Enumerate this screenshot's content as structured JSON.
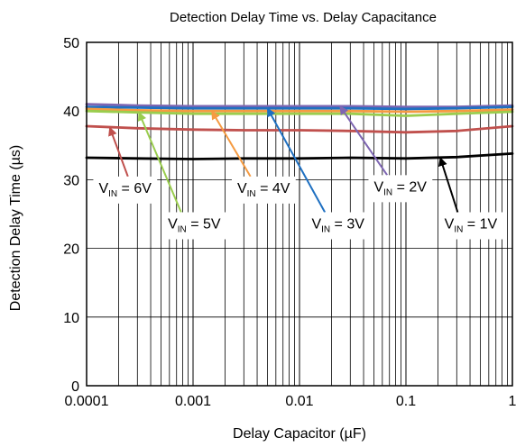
{
  "chart_data": {
    "type": "line",
    "title": "Detection Delay Time vs. Delay Capacitance",
    "xlabel": "Delay Capacitor (µF)",
    "ylabel": "Detection Delay Time (µs)",
    "x_scale": "log",
    "xlim": [
      0.0001,
      1
    ],
    "ylim": [
      0,
      50
    ],
    "x_ticks": [
      0.0001,
      0.001,
      0.01,
      0.1,
      1
    ],
    "x_tick_labels": [
      "0.0001",
      "0.001",
      "0.01",
      "0.1",
      "1"
    ],
    "y_ticks": [
      0,
      10,
      20,
      30,
      40,
      50
    ],
    "y_tick_labels": [
      "0",
      "10",
      "20",
      "30",
      "40",
      "50"
    ],
    "grid": true,
    "legend": "none",
    "x": [
      0.0001,
      0.0003,
      0.001,
      0.003,
      0.01,
      0.03,
      0.1,
      0.3,
      1
    ],
    "series": [
      {
        "name": "VIN = 1V",
        "color": "#000000",
        "values": [
          33.2,
          33.1,
          33.0,
          33.1,
          33.1,
          33.2,
          33.1,
          33.3,
          33.8
        ]
      },
      {
        "name": "VIN = 2V",
        "color": "#7e66b2",
        "values": [
          41.0,
          40.8,
          40.7,
          40.7,
          40.7,
          40.7,
          40.6,
          40.6,
          40.8
        ]
      },
      {
        "name": "VIN = 3V",
        "color": "#1f70c1",
        "values": [
          40.6,
          40.5,
          40.4,
          40.4,
          40.4,
          40.4,
          40.3,
          40.4,
          40.6
        ]
      },
      {
        "name": "VIN = 4V",
        "color": "#f59b42",
        "values": [
          40.3,
          40.1,
          40.0,
          40.0,
          40.0,
          40.0,
          39.9,
          40.0,
          40.2
        ]
      },
      {
        "name": "VIN = 5V",
        "color": "#9acd4e",
        "values": [
          40.0,
          39.8,
          39.6,
          39.6,
          39.6,
          39.6,
          39.3,
          39.6,
          39.9
        ]
      },
      {
        "name": "VIN = 6V",
        "color": "#c0504d",
        "values": [
          37.8,
          37.5,
          37.3,
          37.2,
          37.2,
          37.1,
          36.9,
          37.1,
          37.8
        ]
      }
    ],
    "annotations": [
      {
        "series": 5,
        "main": "V",
        "sub": "IN",
        "rest": " = 6V",
        "target_x": 0.000165,
        "target_y": 37.6,
        "label_x": 0.00013,
        "label_y": 28.1
      },
      {
        "series": 4,
        "main": "V",
        "sub": "IN",
        "rest": " = 5V",
        "target_x": 0.00031,
        "target_y": 39.8,
        "label_x": 0.00058,
        "label_y": 22.9
      },
      {
        "series": 3,
        "main": "V",
        "sub": "IN",
        "rest": " = 4V",
        "target_x": 0.0015,
        "target_y": 40.0,
        "label_x": 0.0026,
        "label_y": 28.1
      },
      {
        "series": 2,
        "main": "V",
        "sub": "IN",
        "rest": " = 3V",
        "target_x": 0.005,
        "target_y": 40.4,
        "label_x": 0.013,
        "label_y": 22.9
      },
      {
        "series": 1,
        "main": "V",
        "sub": "IN",
        "rest": " = 2V",
        "target_x": 0.024,
        "target_y": 40.7,
        "label_x": 0.05,
        "label_y": 28.3
      },
      {
        "series": 0,
        "main": "V",
        "sub": "IN",
        "rest": " = 1V",
        "target_x": 0.21,
        "target_y": 33.2,
        "label_x": 0.23,
        "label_y": 22.9
      }
    ]
  }
}
